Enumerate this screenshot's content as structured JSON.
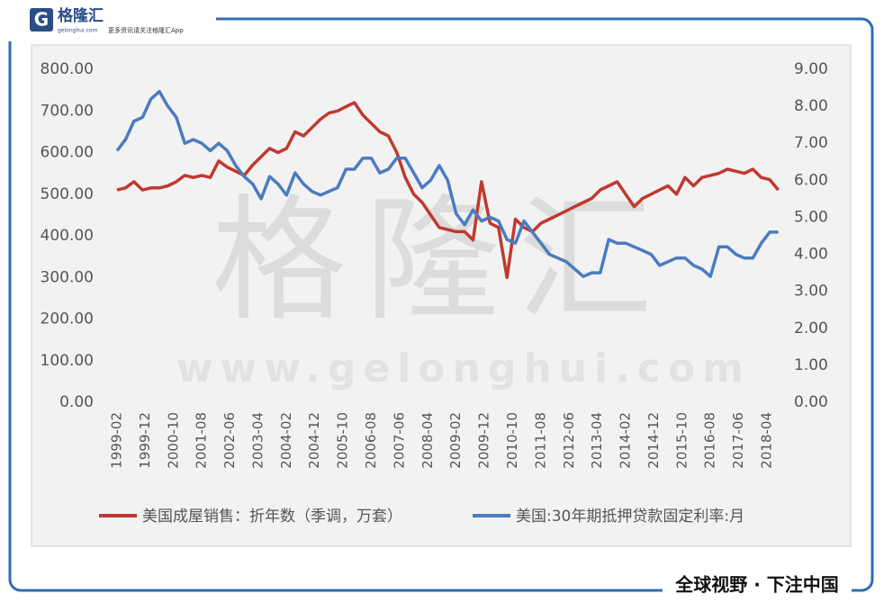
{
  "header": {
    "brand": "格隆汇",
    "domain": "gelonghui.com",
    "tagline": "更多资讯请关注格隆汇App"
  },
  "footer": "全球视野 · 下注中国",
  "chart_data": {
    "type": "line",
    "watermark": {
      "main": "格隆汇",
      "url": "www.gelonghui.com"
    },
    "x": [
      "1999-02",
      "1999-05",
      "1999-08",
      "1999-11",
      "2000-02",
      "2000-05",
      "2000-08",
      "2000-11",
      "2001-02",
      "2001-05",
      "2001-08",
      "2001-11",
      "2002-02",
      "2002-05",
      "2002-08",
      "2002-11",
      "2003-02",
      "2003-05",
      "2003-08",
      "2003-11",
      "2004-02",
      "2004-05",
      "2004-08",
      "2004-11",
      "2005-02",
      "2005-05",
      "2005-08",
      "2005-11",
      "2006-02",
      "2006-05",
      "2006-08",
      "2006-11",
      "2007-02",
      "2007-05",
      "2007-08",
      "2007-11",
      "2008-02",
      "2008-05",
      "2008-08",
      "2008-11",
      "2009-02",
      "2009-05",
      "2009-08",
      "2009-11",
      "2010-02",
      "2010-05",
      "2010-08",
      "2010-11",
      "2011-02",
      "2011-05",
      "2011-08",
      "2011-11",
      "2012-02",
      "2012-05",
      "2012-08",
      "2012-11",
      "2013-02",
      "2013-05",
      "2013-08",
      "2013-11",
      "2014-02",
      "2014-05",
      "2014-08",
      "2014-11",
      "2015-02",
      "2015-05",
      "2015-08",
      "2015-11",
      "2016-02",
      "2016-05",
      "2016-08",
      "2016-11",
      "2017-02",
      "2017-05",
      "2017-08",
      "2017-11",
      "2018-02",
      "2018-05",
      "2018-08"
    ],
    "series": [
      {
        "name": "美国成屋销售：折年数（季调，万套）",
        "color": "#c0392f",
        "axis": "y",
        "values": [
          510,
          515,
          530,
          510,
          515,
          515,
          520,
          530,
          545,
          540,
          545,
          540,
          580,
          565,
          555,
          545,
          570,
          590,
          610,
          600,
          610,
          650,
          640,
          660,
          680,
          695,
          700,
          710,
          720,
          690,
          670,
          650,
          640,
          600,
          540,
          500,
          480,
          450,
          420,
          415,
          410,
          410,
          390,
          530,
          430,
          420,
          300,
          440,
          420,
          410,
          430,
          440,
          450,
          460,
          470,
          480,
          490,
          510,
          520,
          530,
          500,
          470,
          490,
          500,
          510,
          520,
          500,
          540,
          520,
          540,
          545,
          550,
          560,
          555,
          550,
          560,
          540,
          535,
          510
        ]
      },
      {
        "name": "美国:30年期抵押贷款固定利率:月",
        "color": "#4a7cc0",
        "axis": "y2",
        "values": [
          6.8,
          7.1,
          7.6,
          7.7,
          8.2,
          8.4,
          8.0,
          7.7,
          7.0,
          7.1,
          7.0,
          6.8,
          7.0,
          6.8,
          6.4,
          6.1,
          5.9,
          5.5,
          6.1,
          5.9,
          5.6,
          6.2,
          5.9,
          5.7,
          5.6,
          5.7,
          5.8,
          6.3,
          6.3,
          6.6,
          6.6,
          6.2,
          6.3,
          6.6,
          6.6,
          6.2,
          5.8,
          6.0,
          6.4,
          6.0,
          5.1,
          4.8,
          5.2,
          4.9,
          5.0,
          4.9,
          4.4,
          4.3,
          4.9,
          4.6,
          4.3,
          4.0,
          3.9,
          3.8,
          3.6,
          3.4,
          3.5,
          3.5,
          4.4,
          4.3,
          4.3,
          4.2,
          4.1,
          4.0,
          3.7,
          3.8,
          3.9,
          3.9,
          3.7,
          3.6,
          3.4,
          4.2,
          4.2,
          4.0,
          3.9,
          3.9,
          4.3,
          4.6,
          4.6
        ]
      }
    ],
    "xticks": [
      "1999-02",
      "1999-12",
      "2000-10",
      "2001-08",
      "2002-06",
      "2003-04",
      "2004-02",
      "2004-12",
      "2005-10",
      "2006-08",
      "2007-06",
      "2008-04",
      "2009-02",
      "2009-12",
      "2010-10",
      "2011-08",
      "2012-06",
      "2013-04",
      "2014-02",
      "2014-12",
      "2015-10",
      "2016-08",
      "2017-06",
      "2018-04"
    ],
    "ylim": [
      0,
      800
    ],
    "yticks": [
      {
        "value": 0,
        "label": "0.00"
      },
      {
        "value": 100,
        "label": "100.00"
      },
      {
        "value": 200,
        "label": "200.00"
      },
      {
        "value": 300,
        "label": "300.00"
      },
      {
        "value": 400,
        "label": "400.00"
      },
      {
        "value": 500,
        "label": "500.00"
      },
      {
        "value": 600,
        "label": "600.00"
      },
      {
        "value": 700,
        "label": "700.00"
      },
      {
        "value": 800,
        "label": "800.00"
      }
    ],
    "y2lim": [
      0,
      9
    ],
    "y2ticks": [
      {
        "value": 0,
        "label": "0.00"
      },
      {
        "value": 1,
        "label": "1.00"
      },
      {
        "value": 2,
        "label": "2.00"
      },
      {
        "value": 3,
        "label": "3.00"
      },
      {
        "value": 4,
        "label": "4.00"
      },
      {
        "value": 5,
        "label": "5.00"
      },
      {
        "value": 6,
        "label": "6.00"
      },
      {
        "value": 7,
        "label": "7.00"
      },
      {
        "value": 8,
        "label": "8.00"
      },
      {
        "value": 9,
        "label": "9.00"
      }
    ],
    "grid": false,
    "legend": "bottom"
  }
}
